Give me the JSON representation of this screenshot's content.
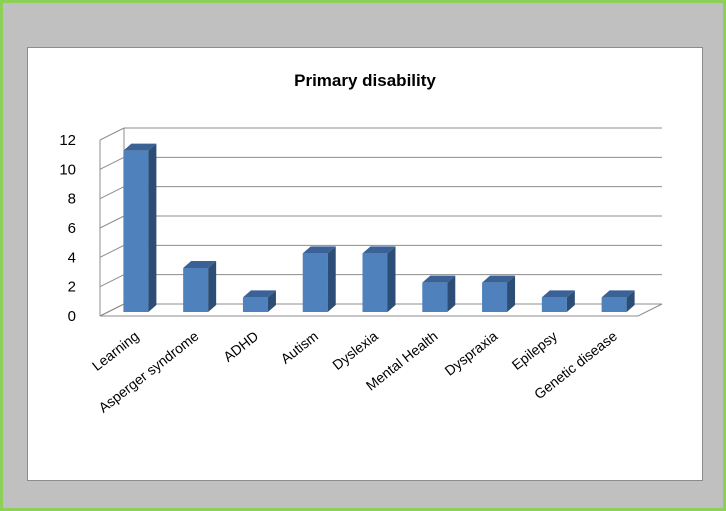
{
  "chart_data": {
    "type": "bar",
    "title": "Primary disability",
    "categories": [
      "Learning",
      "Asperger syndrome",
      "ADHD",
      "Autism",
      "Dyslexia",
      "Mental Health",
      "Dyspraxia",
      "Epilepsy",
      "Genetic disease"
    ],
    "values": [
      11,
      3,
      1,
      4,
      4,
      2,
      2,
      1,
      1
    ],
    "ylim": [
      0,
      12
    ],
    "yticks": [
      0,
      2,
      4,
      6,
      8,
      10,
      12
    ],
    "grid": true,
    "legend": "none",
    "style": "3d-column",
    "colors": {
      "bar_front": "#4f81bd",
      "bar_side": "#2c4d75",
      "bar_top": "#3a6296",
      "grid": "#8c8c8c"
    }
  }
}
